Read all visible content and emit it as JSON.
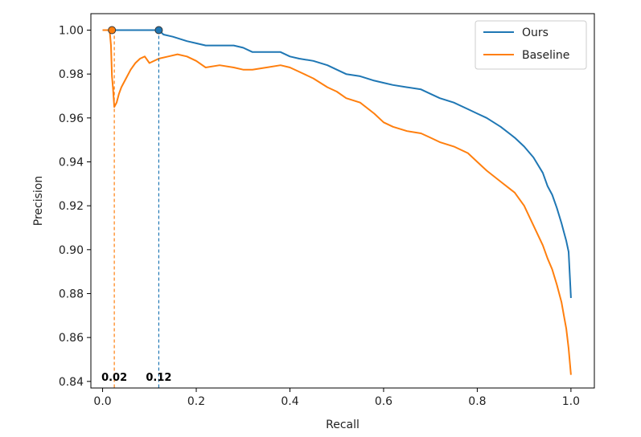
{
  "chart_data": {
    "type": "line",
    "title": "",
    "xlabel": "Recall",
    "ylabel": "Precision",
    "xlim": [
      -0.025,
      1.05
    ],
    "ylim": [
      0.837,
      1.0075
    ],
    "grid": false,
    "xticks": [
      0.0,
      0.2,
      0.4,
      0.6,
      0.8,
      1.0
    ],
    "xtick_labels": [
      "0.0",
      "0.2",
      "0.4",
      "0.6",
      "0.8",
      "1.0"
    ],
    "yticks": [
      0.84,
      0.86,
      0.88,
      0.9,
      0.92,
      0.94,
      0.96,
      0.98,
      1.0
    ],
    "ytick_labels": [
      "0.84",
      "0.86",
      "0.88",
      "0.90",
      "0.92",
      "0.94",
      "0.96",
      "0.98",
      "1.00"
    ],
    "legend_position": "top-right",
    "series": [
      {
        "name": "Ours",
        "color": "#1f77b4",
        "x": [
          0.0,
          0.05,
          0.1,
          0.12,
          0.13,
          0.15,
          0.18,
          0.2,
          0.22,
          0.25,
          0.28,
          0.3,
          0.32,
          0.35,
          0.38,
          0.4,
          0.42,
          0.45,
          0.48,
          0.5,
          0.52,
          0.55,
          0.58,
          0.6,
          0.62,
          0.65,
          0.68,
          0.7,
          0.72,
          0.75,
          0.78,
          0.8,
          0.82,
          0.85,
          0.88,
          0.9,
          0.92,
          0.94,
          0.95,
          0.96,
          0.97,
          0.98,
          0.985,
          0.99,
          0.995,
          1.0
        ],
        "y": [
          1.0,
          1.0,
          1.0,
          1.0,
          0.998,
          0.997,
          0.995,
          0.994,
          0.993,
          0.993,
          0.993,
          0.992,
          0.99,
          0.99,
          0.99,
          0.988,
          0.987,
          0.986,
          0.984,
          0.982,
          0.98,
          0.979,
          0.977,
          0.976,
          0.975,
          0.974,
          0.973,
          0.971,
          0.969,
          0.967,
          0.964,
          0.962,
          0.96,
          0.956,
          0.951,
          0.947,
          0.942,
          0.935,
          0.929,
          0.925,
          0.919,
          0.912,
          0.908,
          0.904,
          0.899,
          0.878
        ]
      },
      {
        "name": "Baseline",
        "color": "#ff7f0e",
        "x": [
          0.0,
          0.015,
          0.018,
          0.02,
          0.022,
          0.025,
          0.03,
          0.035,
          0.04,
          0.05,
          0.06,
          0.07,
          0.08,
          0.09,
          0.1,
          0.12,
          0.14,
          0.16,
          0.18,
          0.2,
          0.22,
          0.25,
          0.28,
          0.3,
          0.32,
          0.35,
          0.38,
          0.4,
          0.42,
          0.45,
          0.48,
          0.5,
          0.52,
          0.55,
          0.58,
          0.6,
          0.62,
          0.65,
          0.68,
          0.7,
          0.72,
          0.75,
          0.78,
          0.8,
          0.82,
          0.85,
          0.88,
          0.9,
          0.92,
          0.94,
          0.95,
          0.96,
          0.97,
          0.98,
          0.985,
          0.99,
          0.995,
          1.0
        ],
        "y": [
          1.0,
          1.0,
          0.993,
          0.979,
          0.974,
          0.965,
          0.967,
          0.971,
          0.974,
          0.978,
          0.982,
          0.985,
          0.987,
          0.988,
          0.985,
          0.987,
          0.988,
          0.989,
          0.988,
          0.986,
          0.983,
          0.984,
          0.983,
          0.982,
          0.982,
          0.983,
          0.984,
          0.983,
          0.981,
          0.978,
          0.974,
          0.972,
          0.969,
          0.967,
          0.962,
          0.958,
          0.956,
          0.954,
          0.953,
          0.951,
          0.949,
          0.947,
          0.944,
          0.94,
          0.936,
          0.931,
          0.926,
          0.92,
          0.911,
          0.902,
          0.896,
          0.891,
          0.884,
          0.876,
          0.87,
          0.864,
          0.855,
          0.843
        ]
      }
    ],
    "markers": [
      {
        "series": "Baseline",
        "x": 0.02,
        "y": 1.0,
        "color": "#ff7f0e",
        "label": "0.02",
        "line_x": 0.025
      },
      {
        "series": "Ours",
        "x": 0.12,
        "y": 1.0,
        "color": "#1f77b4",
        "label": "0.12",
        "line_x": 0.12
      }
    ]
  }
}
